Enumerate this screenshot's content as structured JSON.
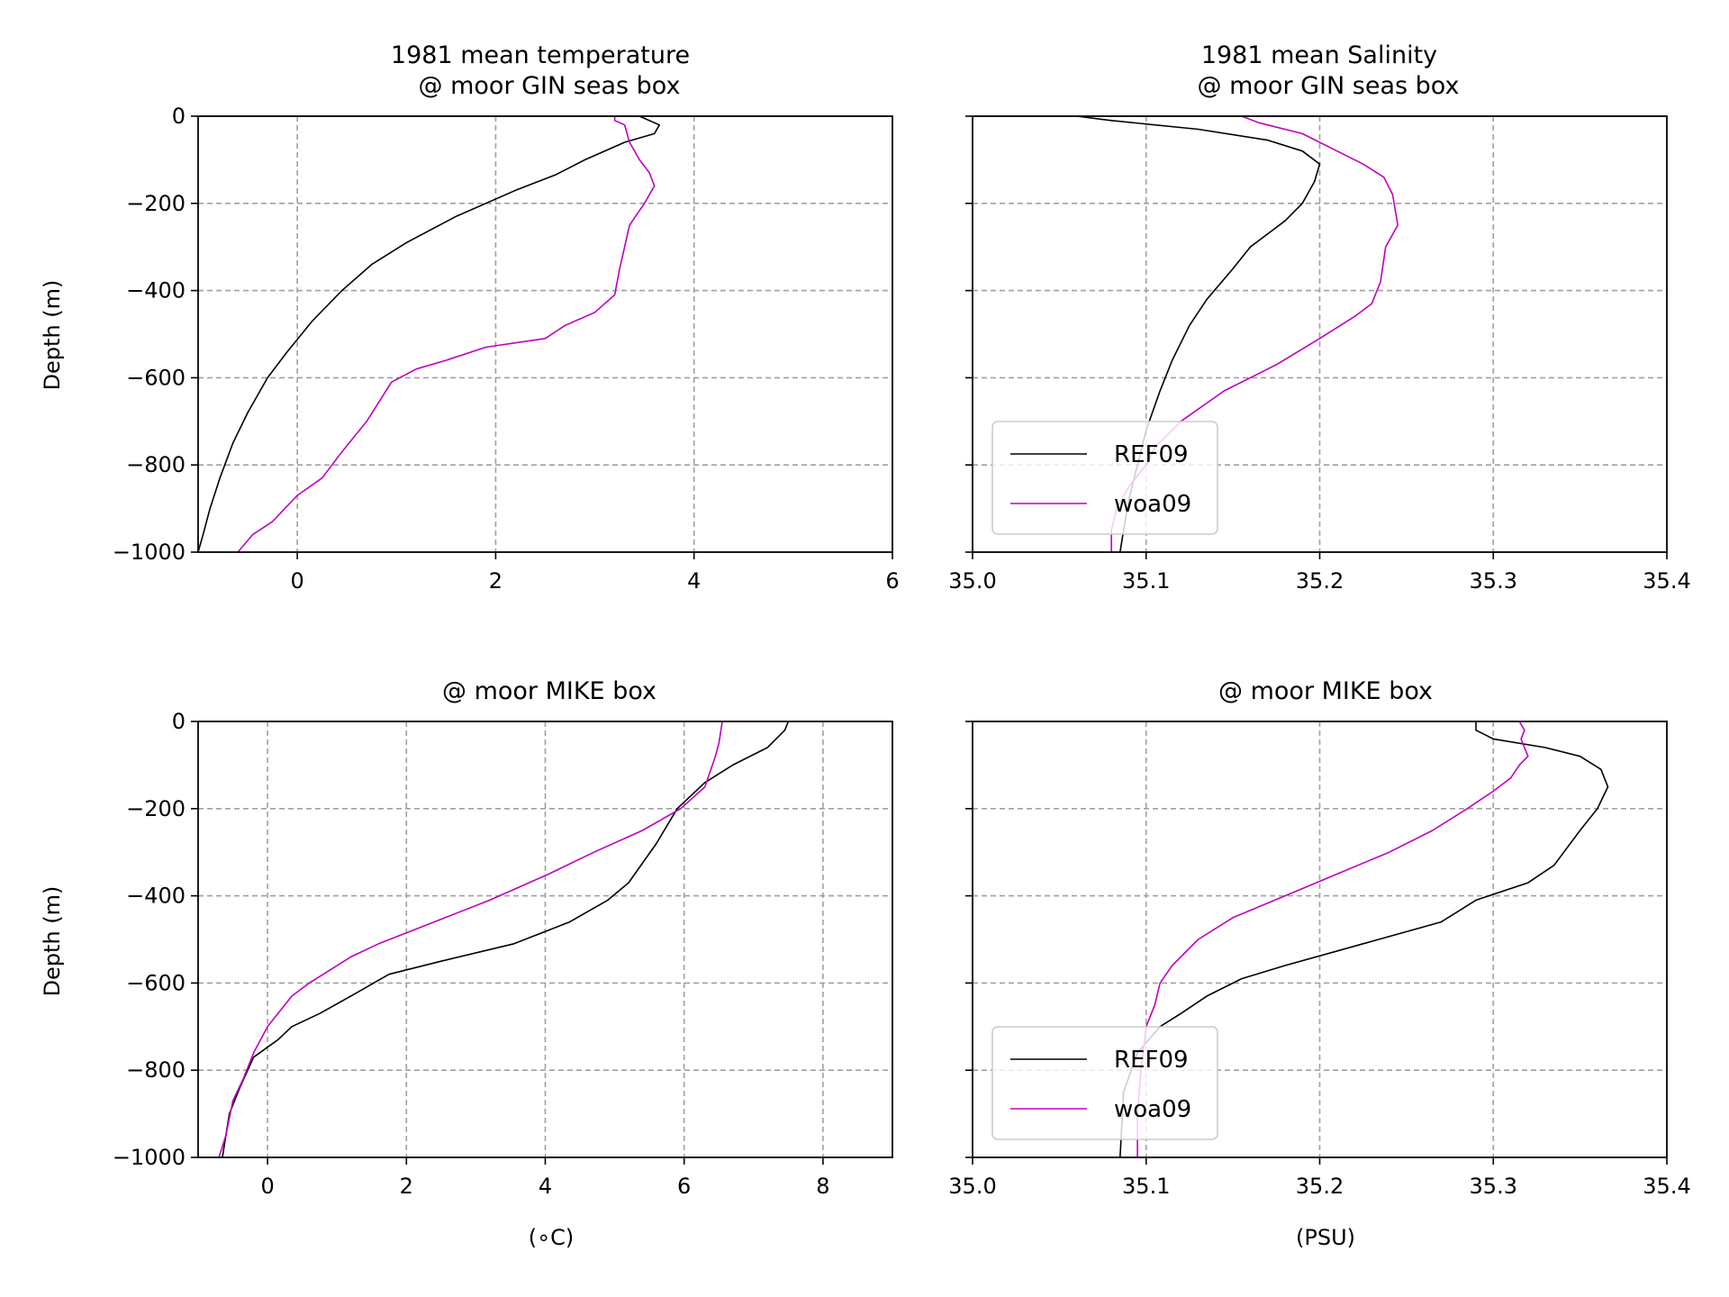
{
  "colors": {
    "REF09": "#000000",
    "woa09": "#bf00bf",
    "grid": "#a0a0a0",
    "frame": "#000000"
  },
  "chart_data": [
    {
      "type": "line",
      "title_line1": "1981 mean temperature",
      "title_line2": "@ moor GIN seas box",
      "xlabel": "",
      "ylabel": "Depth (m)",
      "xlim": [
        -1,
        6
      ],
      "ylim": [
        -1000,
        0
      ],
      "xticks": [
        0,
        2,
        4,
        6
      ],
      "xtick_labels": [
        "0",
        "2",
        "4",
        "6"
      ],
      "yticks": [
        0,
        -200,
        -400,
        -600,
        -800,
        -1000
      ],
      "ytick_labels": [
        "0",
        "−200",
        "−400",
        "−600",
        "−800",
        "−1000"
      ],
      "grid": true,
      "legend": null,
      "series": [
        {
          "name": "REF09",
          "color": "#000000",
          "points": [
            [
              3.45,
              0
            ],
            [
              3.65,
              -20
            ],
            [
              3.6,
              -40
            ],
            [
              3.3,
              -60
            ],
            [
              2.9,
              -100
            ],
            [
              2.6,
              -135
            ],
            [
              2.2,
              -170
            ],
            [
              1.6,
              -230
            ],
            [
              1.1,
              -290
            ],
            [
              0.75,
              -340
            ],
            [
              0.45,
              -400
            ],
            [
              0.15,
              -470
            ],
            [
              -0.1,
              -540
            ],
            [
              -0.3,
              -600
            ],
            [
              -0.5,
              -680
            ],
            [
              -0.65,
              -750
            ],
            [
              -0.78,
              -830
            ],
            [
              -0.88,
              -900
            ],
            [
              -0.95,
              -960
            ],
            [
              -1.0,
              -1000
            ]
          ]
        },
        {
          "name": "woa09",
          "color": "#bf00bf",
          "points": [
            [
              3.2,
              0
            ],
            [
              3.2,
              -10
            ],
            [
              3.3,
              -20
            ],
            [
              3.35,
              -60
            ],
            [
              3.45,
              -100
            ],
            [
              3.55,
              -130
            ],
            [
              3.6,
              -160
            ],
            [
              3.5,
              -200
            ],
            [
              3.35,
              -250
            ],
            [
              3.3,
              -300
            ],
            [
              3.25,
              -350
            ],
            [
              3.2,
              -410
            ],
            [
              3.0,
              -450
            ],
            [
              2.7,
              -480
            ],
            [
              2.5,
              -510
            ],
            [
              1.9,
              -530
            ],
            [
              1.5,
              -560
            ],
            [
              1.2,
              -580
            ],
            [
              0.95,
              -610
            ],
            [
              0.7,
              -700
            ],
            [
              0.45,
              -770
            ],
            [
              0.25,
              -830
            ],
            [
              0.0,
              -870
            ],
            [
              -0.25,
              -930
            ],
            [
              -0.45,
              -960
            ],
            [
              -0.6,
              -1000
            ]
          ]
        }
      ]
    },
    {
      "type": "line",
      "title_line1": "1981 mean Salinity",
      "title_line2": "@ moor GIN seas box",
      "xlabel": "",
      "ylabel": "",
      "xlim": [
        35.0,
        35.4
      ],
      "ylim": [
        -1000,
        0
      ],
      "xticks": [
        35.0,
        35.1,
        35.2,
        35.3,
        35.4
      ],
      "xtick_labels": [
        "35.0",
        "35.1",
        "35.2",
        "35.3",
        "35.4"
      ],
      "yticks": [
        0,
        -200,
        -400,
        -600,
        -800,
        -1000
      ],
      "ytick_labels": [],
      "grid": true,
      "legend": {
        "position": "lower-left",
        "entries": [
          "REF09",
          "woa09"
        ]
      },
      "series": [
        {
          "name": "REF09",
          "color": "#000000",
          "points": [
            [
              35.06,
              0
            ],
            [
              35.08,
              -10
            ],
            [
              35.13,
              -30
            ],
            [
              35.17,
              -55
            ],
            [
              35.19,
              -80
            ],
            [
              35.2,
              -110
            ],
            [
              35.197,
              -150
            ],
            [
              35.19,
              -200
            ],
            [
              35.18,
              -240
            ],
            [
              35.16,
              -300
            ],
            [
              35.15,
              -350
            ],
            [
              35.135,
              -420
            ],
            [
              35.125,
              -480
            ],
            [
              35.115,
              -560
            ],
            [
              35.108,
              -630
            ],
            [
              35.1,
              -720
            ],
            [
              35.095,
              -800
            ],
            [
              35.09,
              -880
            ],
            [
              35.087,
              -950
            ],
            [
              35.085,
              -1000
            ]
          ]
        },
        {
          "name": "woa09",
          "color": "#bf00bf",
          "points": [
            [
              35.155,
              0
            ],
            [
              35.165,
              -15
            ],
            [
              35.19,
              -40
            ],
            [
              35.21,
              -80
            ],
            [
              35.225,
              -110
            ],
            [
              35.237,
              -140
            ],
            [
              35.242,
              -180
            ],
            [
              35.245,
              -250
            ],
            [
              35.238,
              -300
            ],
            [
              35.235,
              -380
            ],
            [
              35.23,
              -430
            ],
            [
              35.22,
              -460
            ],
            [
              35.2,
              -510
            ],
            [
              35.175,
              -570
            ],
            [
              35.145,
              -630
            ],
            [
              35.12,
              -700
            ],
            [
              35.105,
              -760
            ],
            [
              35.1,
              -800
            ],
            [
              35.09,
              -850
            ],
            [
              35.083,
              -900
            ],
            [
              35.08,
              -950
            ],
            [
              35.08,
              -1000
            ]
          ]
        }
      ]
    },
    {
      "type": "line",
      "title_line1": "@ moor MIKE box",
      "title_line2": "",
      "xlabel": "(∘C)",
      "ylabel": "Depth (m)",
      "xlim": [
        -1,
        9
      ],
      "ylim": [
        -1000,
        0
      ],
      "xticks": [
        0,
        2,
        4,
        6,
        8
      ],
      "xtick_labels": [
        "0",
        "2",
        "4",
        "6",
        "8"
      ],
      "yticks": [
        0,
        -200,
        -400,
        -600,
        -800,
        -1000
      ],
      "ytick_labels": [
        "0",
        "−200",
        "−400",
        "−600",
        "−800",
        "−1000"
      ],
      "grid": true,
      "legend": null,
      "series": [
        {
          "name": "REF09",
          "color": "#000000",
          "points": [
            [
              7.5,
              0
            ],
            [
              7.45,
              -20
            ],
            [
              7.2,
              -60
            ],
            [
              6.7,
              -100
            ],
            [
              6.3,
              -140
            ],
            [
              5.9,
              -200
            ],
            [
              5.6,
              -280
            ],
            [
              5.2,
              -370
            ],
            [
              4.9,
              -410
            ],
            [
              4.35,
              -460
            ],
            [
              3.55,
              -510
            ],
            [
              2.5,
              -550
            ],
            [
              1.75,
              -580
            ],
            [
              1.2,
              -630
            ],
            [
              0.75,
              -670
            ],
            [
              0.35,
              -700
            ],
            [
              0.15,
              -730
            ],
            [
              -0.2,
              -770
            ],
            [
              -0.4,
              -840
            ],
            [
              -0.55,
              -900
            ],
            [
              -0.6,
              -950
            ],
            [
              -0.65,
              -1000
            ]
          ]
        },
        {
          "name": "woa09",
          "color": "#bf00bf",
          "points": [
            [
              6.55,
              0
            ],
            [
              6.5,
              -50
            ],
            [
              6.45,
              -80
            ],
            [
              6.3,
              -150
            ],
            [
              5.95,
              -200
            ],
            [
              5.4,
              -250
            ],
            [
              4.7,
              -300
            ],
            [
              4.05,
              -350
            ],
            [
              3.2,
              -410
            ],
            [
              2.4,
              -460
            ],
            [
              1.6,
              -510
            ],
            [
              1.2,
              -540
            ],
            [
              0.9,
              -570
            ],
            [
              0.6,
              -600
            ],
            [
              0.35,
              -630
            ],
            [
              0.2,
              -660
            ],
            [
              0.0,
              -700
            ],
            [
              -0.2,
              -760
            ],
            [
              -0.35,
              -820
            ],
            [
              -0.5,
              -870
            ],
            [
              -0.6,
              -950
            ],
            [
              -0.7,
              -1000
            ]
          ]
        }
      ]
    },
    {
      "type": "line",
      "title_line1": "@ moor MIKE box",
      "title_line2": "",
      "xlabel": "(PSU)",
      "ylabel": "",
      "xlim": [
        35.0,
        35.4
      ],
      "ylim": [
        -1000,
        0
      ],
      "xticks": [
        35.0,
        35.1,
        35.2,
        35.3,
        35.4
      ],
      "xtick_labels": [
        "35.0",
        "35.1",
        "35.2",
        "35.3",
        "35.4"
      ],
      "yticks": [
        0,
        -200,
        -400,
        -600,
        -800,
        -1000
      ],
      "ytick_labels": [],
      "grid": true,
      "legend": {
        "position": "lower-left",
        "entries": [
          "REF09",
          "woa09"
        ]
      },
      "series": [
        {
          "name": "REF09",
          "color": "#000000",
          "points": [
            [
              35.29,
              0
            ],
            [
              35.29,
              -20
            ],
            [
              35.3,
              -40
            ],
            [
              35.33,
              -60
            ],
            [
              35.35,
              -80
            ],
            [
              35.362,
              -110
            ],
            [
              35.366,
              -150
            ],
            [
              35.36,
              -200
            ],
            [
              35.35,
              -250
            ],
            [
              35.335,
              -330
            ],
            [
              35.32,
              -370
            ],
            [
              35.29,
              -410
            ],
            [
              35.27,
              -460
            ],
            [
              35.225,
              -510
            ],
            [
              35.18,
              -560
            ],
            [
              35.155,
              -590
            ],
            [
              35.135,
              -630
            ],
            [
              35.12,
              -670
            ],
            [
              35.108,
              -700
            ],
            [
              35.095,
              -760
            ],
            [
              35.087,
              -850
            ],
            [
              35.085,
              -1000
            ]
          ]
        },
        {
          "name": "woa09",
          "color": "#bf00bf",
          "points": [
            [
              35.315,
              0
            ],
            [
              35.318,
              -20
            ],
            [
              35.316,
              -40
            ],
            [
              35.32,
              -80
            ],
            [
              35.315,
              -100
            ],
            [
              35.31,
              -130
            ],
            [
              35.3,
              -160
            ],
            [
              35.285,
              -200
            ],
            [
              35.265,
              -250
            ],
            [
              35.24,
              -300
            ],
            [
              35.21,
              -350
            ],
            [
              35.18,
              -400
            ],
            [
              35.15,
              -450
            ],
            [
              35.13,
              -500
            ],
            [
              35.115,
              -560
            ],
            [
              35.108,
              -600
            ],
            [
              35.105,
              -650
            ],
            [
              35.1,
              -700
            ],
            [
              35.097,
              -800
            ],
            [
              35.095,
              -900
            ],
            [
              35.095,
              -1000
            ]
          ]
        }
      ]
    }
  ]
}
